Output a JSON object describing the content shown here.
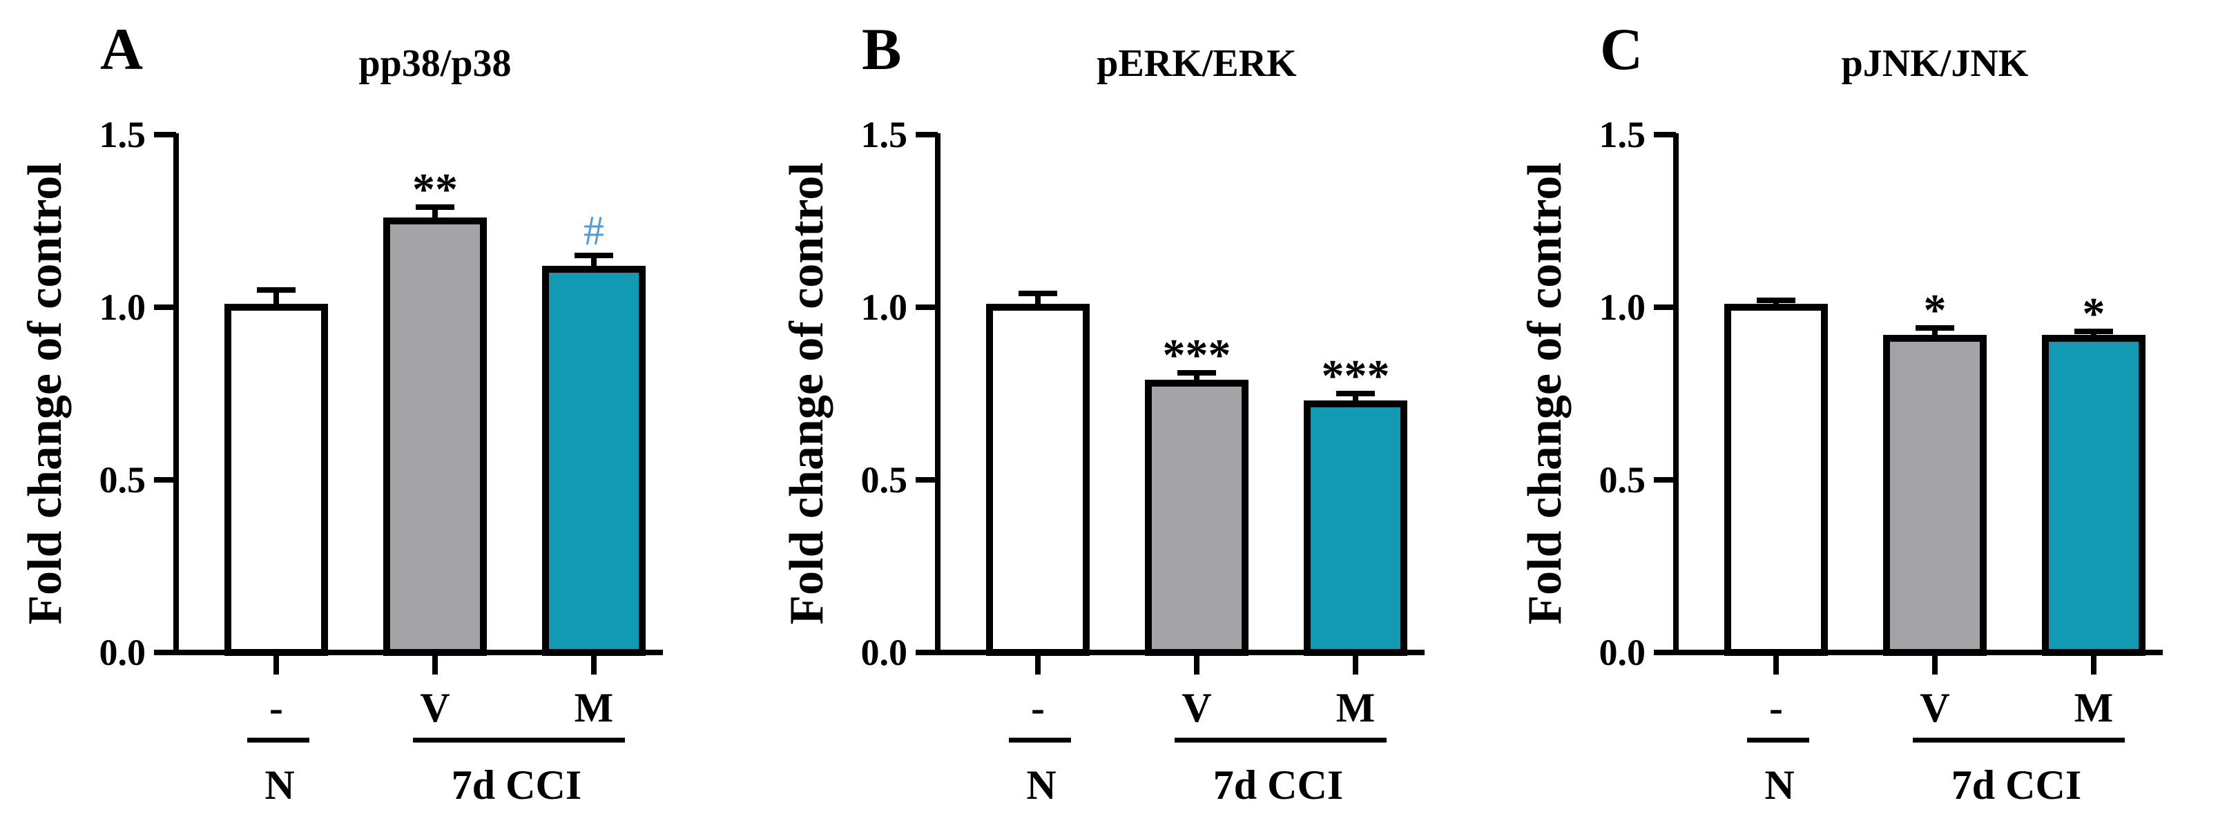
{
  "figure": {
    "colors": {
      "N": "#ffffff",
      "V": "#a3a3a8",
      "M": "#129ab5",
      "hash": "#4a9be0",
      "axis": "#000000"
    },
    "groups": {
      "N": "N",
      "CCI": "7d CCI"
    }
  },
  "chart_data": [
    {
      "type": "bar",
      "panel": "A",
      "title": "pp38/p38",
      "ylabel": "Fold change of control",
      "ylim": [
        0,
        1.5
      ],
      "yticks": [
        "0.0",
        "0.5",
        "1.0",
        "1.5"
      ],
      "categories": [
        "-",
        "V",
        "M"
      ],
      "values": [
        1.0,
        1.25,
        1.11
      ],
      "errors": [
        0.05,
        0.04,
        0.04
      ],
      "annotations": [
        "",
        "**",
        "#"
      ]
    },
    {
      "type": "bar",
      "panel": "B",
      "title": "pERK/ERK",
      "ylabel": "Fold change of control",
      "ylim": [
        0,
        1.5
      ],
      "yticks": [
        "0.0",
        "0.5",
        "1.0",
        "1.5"
      ],
      "categories": [
        "-",
        "V",
        "M"
      ],
      "values": [
        1.0,
        0.78,
        0.72
      ],
      "errors": [
        0.04,
        0.03,
        0.03
      ],
      "annotations": [
        "",
        "***",
        "***"
      ]
    },
    {
      "type": "bar",
      "panel": "C",
      "title": "pJNK/JNK",
      "ylabel": "Fold change of control",
      "ylim": [
        0,
        1.5
      ],
      "yticks": [
        "0.0",
        "0.5",
        "1.0",
        "1.5"
      ],
      "categories": [
        "-",
        "V",
        "M"
      ],
      "values": [
        1.0,
        0.91,
        0.91
      ],
      "errors": [
        0.02,
        0.03,
        0.02
      ],
      "annotations": [
        "",
        "*",
        "*"
      ]
    }
  ]
}
